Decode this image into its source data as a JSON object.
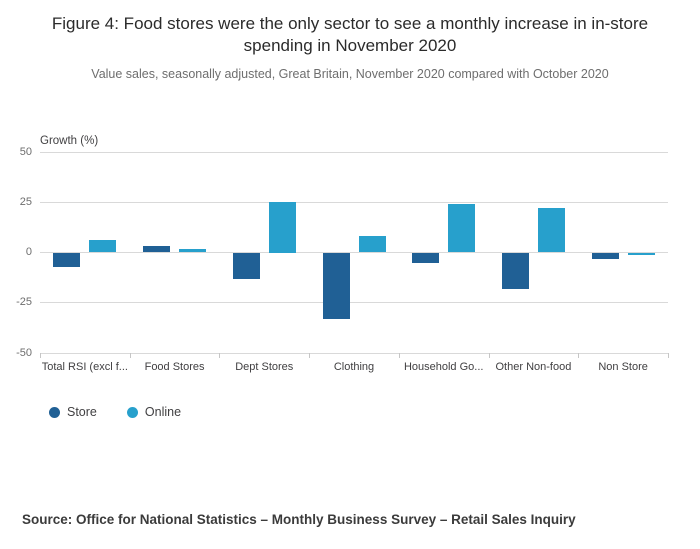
{
  "title": "Figure 4: Food stores were the only sector to see a monthly increase in in-store spending in November 2020",
  "subtitle": "Value sales, seasonally adjusted, Great Britain, November 2020 compared with October 2020",
  "source": "Source: Office for National Statistics – Monthly Business Survey – Retail Sales Inquiry",
  "chart_data": {
    "type": "bar",
    "title": "Figure 4: Food stores were the only sector to see a monthly increase in in-store spending in November 2020",
    "subtitle": "Value sales, seasonally adjusted, Great Britain, November 2020 compared with October 2020",
    "ylabel": "Growth (%)",
    "xlabel": "",
    "ylim": [
      -50,
      50
    ],
    "yticks": [
      50,
      25,
      0,
      -25,
      -50
    ],
    "grid": true,
    "legend_position": "bottom-left",
    "categories": [
      "Total RSI (excl f...",
      "Food Stores",
      "Dept Stores",
      "Clothing",
      "Household Go...",
      "Other Non-food",
      "Non Store"
    ],
    "series": [
      {
        "name": "Store",
        "color": "#206095",
        "values": [
          -7,
          3,
          -13,
          -33,
          -5,
          -18,
          -3
        ]
      },
      {
        "name": "Online",
        "color": "#27A0CC",
        "values": [
          6,
          1.5,
          25,
          8,
          24,
          22,
          -1
        ]
      }
    ]
  }
}
